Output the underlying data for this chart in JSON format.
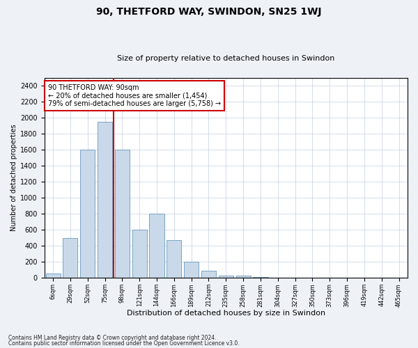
{
  "title1": "90, THETFORD WAY, SWINDON, SN25 1WJ",
  "title2": "Size of property relative to detached houses in Swindon",
  "xlabel": "Distribution of detached houses by size in Swindon",
  "ylabel": "Number of detached properties",
  "categories": [
    "6sqm",
    "29sqm",
    "52sqm",
    "75sqm",
    "98sqm",
    "121sqm",
    "144sqm",
    "166sqm",
    "189sqm",
    "212sqm",
    "235sqm",
    "258sqm",
    "281sqm",
    "304sqm",
    "327sqm",
    "350sqm",
    "373sqm",
    "396sqm",
    "419sqm",
    "442sqm",
    "465sqm"
  ],
  "values": [
    50,
    500,
    1600,
    1950,
    1600,
    600,
    800,
    470,
    200,
    90,
    30,
    25,
    10,
    5,
    2,
    0,
    0,
    0,
    0,
    0,
    0
  ],
  "bar_color": "#c9d9ea",
  "bar_edge_color": "#6699bb",
  "vline_x_index": 3,
  "vline_color": "#cc0000",
  "ylim": [
    0,
    2500
  ],
  "yticks": [
    0,
    200,
    400,
    600,
    800,
    1000,
    1200,
    1400,
    1600,
    1800,
    2000,
    2200,
    2400
  ],
  "annotation_text": "90 THETFORD WAY: 90sqm\n← 20% of detached houses are smaller (1,454)\n79% of semi-detached houses are larger (5,758) →",
  "annotation_box_color": "#ffffff",
  "annotation_box_edge": "#cc0000",
  "footer1": "Contains HM Land Registry data © Crown copyright and database right 2024.",
  "footer2": "Contains public sector information licensed under the Open Government Licence v3.0.",
  "bg_color": "#eef2f7",
  "plot_bg_color": "#ffffff",
  "grid_color": "#c5cfe0",
  "title1_fontsize": 10,
  "title2_fontsize": 8,
  "xlabel_fontsize": 8,
  "ylabel_fontsize": 7,
  "xtick_fontsize": 6,
  "ytick_fontsize": 7,
  "annot_fontsize": 7
}
